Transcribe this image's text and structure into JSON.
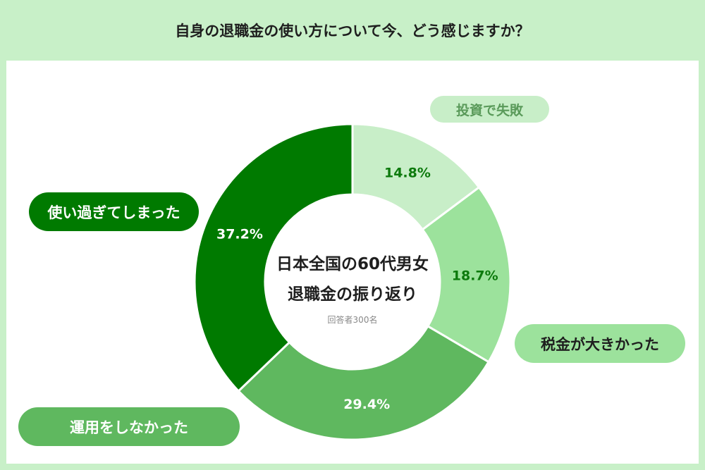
{
  "title": "自身の退職金の使い方について今、どう感じますか？",
  "center": {
    "line1": "日本全国の60代男女",
    "line2": "退職金の振り返り",
    "note": "回答者300名"
  },
  "chart_data": {
    "type": "pie",
    "variant": "donut",
    "start": "12 o'clock, clockwise",
    "categories": [
      "投資で失敗",
      "税金が大きかった",
      "運用をしなかった",
      "使い過ぎてしまった"
    ],
    "values": [
      14.8,
      18.7,
      29.4,
      37.2
    ],
    "value_labels": [
      "14.8%",
      "18.7%",
      "29.4%",
      "37.2%"
    ],
    "colors": [
      "#c8eec8",
      "#9ce29c",
      "#5fb85f",
      "#007a00"
    ],
    "label_text_colors": [
      "#0d7a0d",
      "#0d7a0d",
      "#ffffff",
      "#ffffff"
    ],
    "pill_text_colors": [
      "#5a9a5a",
      "#1e1e1e",
      "#ffffff",
      "#ffffff"
    ],
    "pill_backgrounds": [
      "#c8eec8",
      "#9ce29c",
      "#5fb85f",
      "#007a00"
    ]
  }
}
